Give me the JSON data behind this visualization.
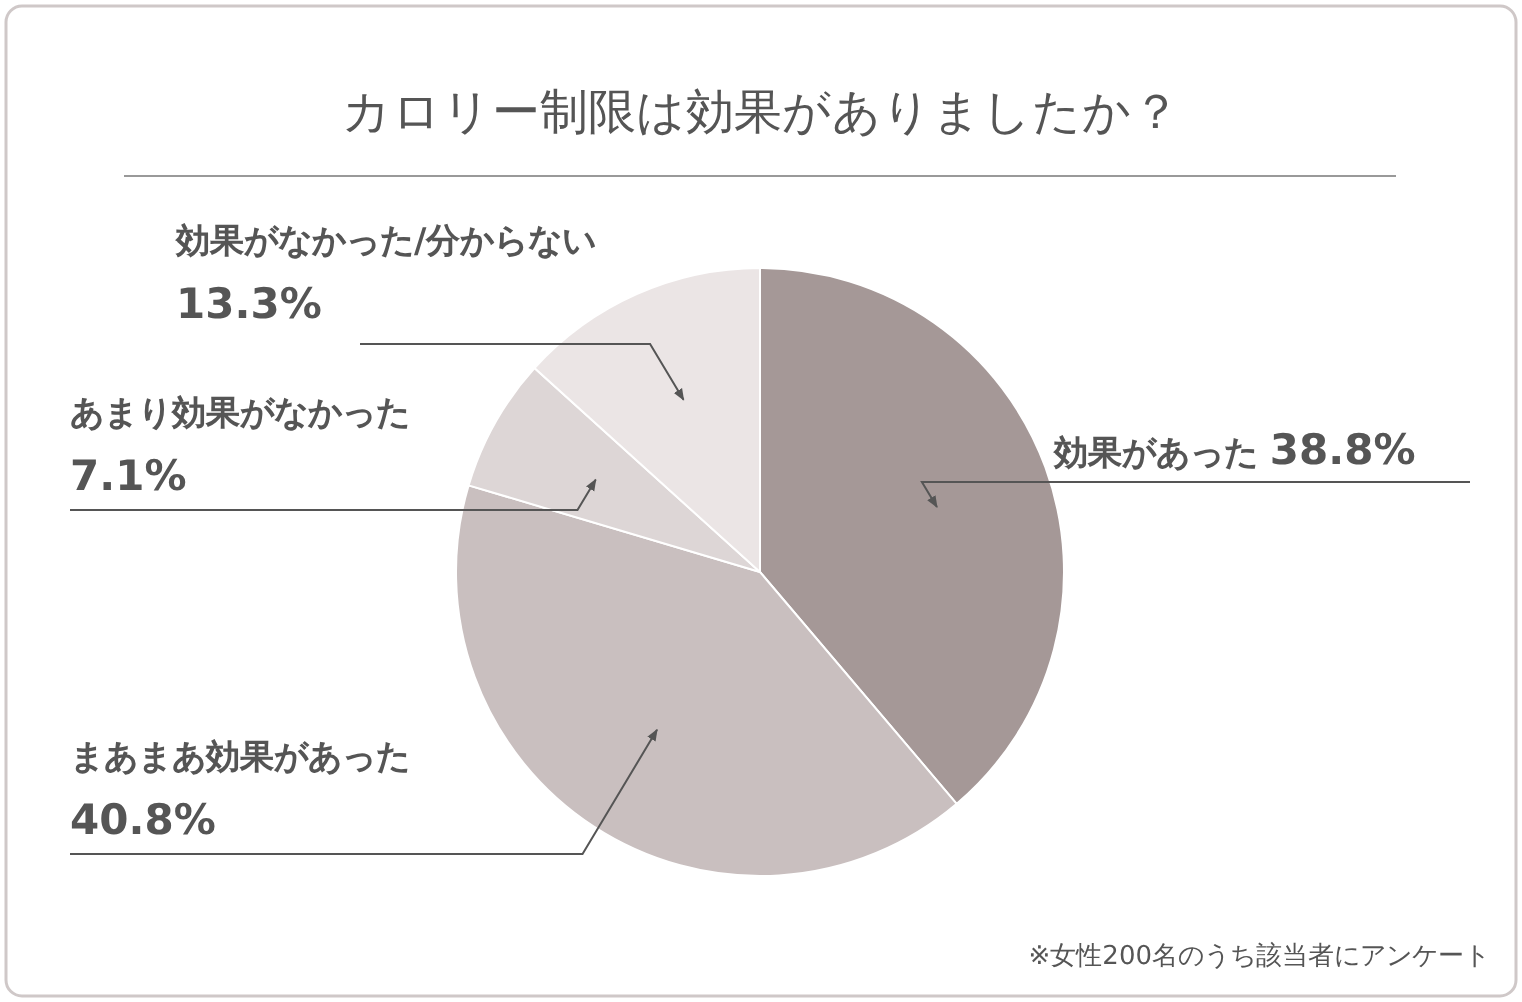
{
  "chart_data": {
    "type": "pie",
    "title": "カロリー制限は効果がありましたか？",
    "categories": [
      "効果があった",
      "まあまあ効果があった",
      "あまり効果がなかった",
      "効果がなかった/分からない"
    ],
    "values": [
      38.8,
      40.8,
      7.1,
      13.3
    ],
    "value_labels": [
      "38.8%",
      "40.8%",
      "7.1%",
      "13.3%"
    ],
    "colors": [
      "#a59897",
      "#c9bfbf",
      "#ddd6d6",
      "#ebe5e5"
    ],
    "annotations": [
      "※女性200名のうち該当者にアンケート"
    ],
    "legend": false
  }
}
